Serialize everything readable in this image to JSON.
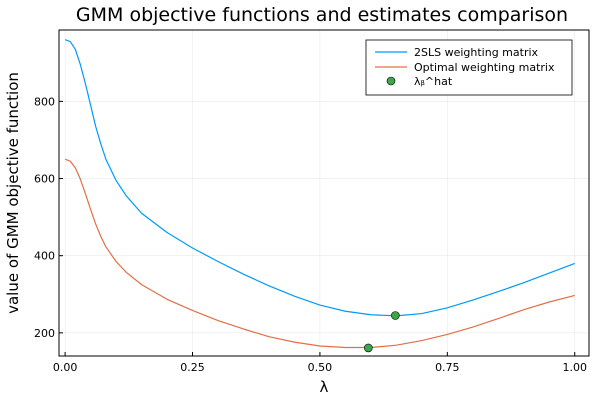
{
  "chart_data": {
    "type": "line",
    "title": "GMM objective functions and estimates comparison",
    "xlabel": "λ",
    "ylabel": "value of GMM objective function",
    "xlim": [
      -0.012,
      1.028
    ],
    "ylim": [
      140,
      985
    ],
    "xticks": [
      0.0,
      0.25,
      0.5,
      0.75,
      1.0
    ],
    "xtick_labels": [
      "0.00",
      "0.25",
      "0.50",
      "0.75",
      "1.00"
    ],
    "yticks": [
      200,
      400,
      600,
      800
    ],
    "ytick_labels": [
      "200",
      "400",
      "600",
      "800"
    ],
    "grid": true,
    "legend_position": "top-right",
    "series": [
      {
        "name": "2SLS weighting matrix",
        "color": "#009AFA",
        "x": [
          0.0,
          0.01,
          0.02,
          0.03,
          0.04,
          0.05,
          0.06,
          0.07,
          0.08,
          0.1,
          0.12,
          0.15,
          0.2,
          0.25,
          0.3,
          0.35,
          0.4,
          0.45,
          0.5,
          0.55,
          0.6,
          0.65,
          0.7,
          0.75,
          0.8,
          0.85,
          0.9,
          0.95,
          1.0
        ],
        "y": [
          960,
          955,
          935,
          895,
          845,
          790,
          735,
          690,
          650,
          595,
          555,
          510,
          460,
          420,
          385,
          352,
          322,
          295,
          272,
          256,
          247,
          244,
          250,
          265,
          285,
          307,
          330,
          355,
          380
        ]
      },
      {
        "name": "Optimal weighting matrix",
        "color": "#E26F46",
        "x": [
          0.0,
          0.01,
          0.02,
          0.03,
          0.04,
          0.05,
          0.06,
          0.07,
          0.08,
          0.1,
          0.12,
          0.15,
          0.2,
          0.25,
          0.3,
          0.35,
          0.4,
          0.45,
          0.5,
          0.55,
          0.6,
          0.65,
          0.7,
          0.75,
          0.8,
          0.85,
          0.9,
          0.95,
          1.0
        ],
        "y": [
          650,
          645,
          628,
          598,
          560,
          520,
          482,
          450,
          423,
          385,
          357,
          325,
          287,
          258,
          232,
          210,
          190,
          176,
          166,
          162,
          162,
          168,
          180,
          196,
          215,
          237,
          260,
          280,
          297
        ]
      },
      {
        "name": "λᵦ^hat",
        "color": "#3EA44E",
        "type": "scatter",
        "x": [
          0.648,
          0.595
        ],
        "y": [
          245,
          161
        ]
      }
    ]
  }
}
